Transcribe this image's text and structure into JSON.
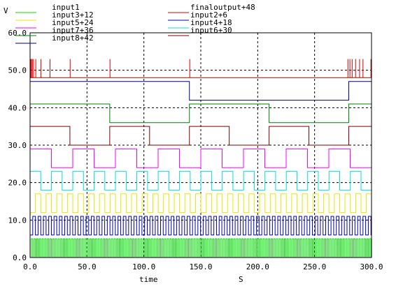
{
  "chart_data": {
    "type": "line",
    "xlabel": "time",
    "xunit": "S",
    "ylabel": "V",
    "xlim": [
      0,
      300
    ],
    "ylim": [
      0,
      60
    ],
    "grid": true,
    "xticks": [
      "0.0",
      "50.0",
      "100.0",
      "150.0",
      "200.0",
      "250.0",
      "300.0"
    ],
    "yticks": [
      "0.0",
      "10.0",
      "20.0",
      "30.0",
      "40.0",
      "50.0",
      "60.0"
    ],
    "legend": [
      {
        "name": "input1",
        "color": "#00e000"
      },
      {
        "name": "finaloutput+48",
        "color": "#e00000"
      },
      {
        "name": "input3+12",
        "color": "#e8e800"
      },
      {
        "name": "input2+6",
        "color": "#0000c0"
      },
      {
        "name": "input5+24",
        "color": "#ff00ff"
      },
      {
        "name": "input4+18",
        "color": "#00e0e0"
      },
      {
        "name": "input7+36",
        "color": "#008000"
      },
      {
        "name": "input6+30",
        "color": "#800000"
      },
      {
        "name": "input8+42",
        "color": "#000080"
      }
    ],
    "series": [
      {
        "name": "input1",
        "color": "#00e000",
        "base": 0,
        "amplitude": 5,
        "half_period": 1.17,
        "start": 0
      },
      {
        "name": "input2+6",
        "color": "#0000c0",
        "base": 6,
        "amplitude": 5,
        "half_period": 2.34,
        "start": 0
      },
      {
        "name": "input3+12",
        "color": "#e8e800",
        "base": 12,
        "amplitude": 5,
        "half_period": 4.69,
        "start": 0
      },
      {
        "name": "input4+18",
        "color": "#00e0e0",
        "base": 18,
        "amplitude": 5,
        "half_period": 9.38,
        "start": 1
      },
      {
        "name": "input5+24",
        "color": "#ff00ff",
        "base": 24,
        "amplitude": 5,
        "half_period": 18.75,
        "start": 1
      },
      {
        "name": "input6+30",
        "color": "#800000",
        "base": 30,
        "amplitude": 5,
        "half_period": 35.0,
        "start": 1
      },
      {
        "name": "input7+36",
        "color": "#008000",
        "base": 36,
        "amplitude": 5,
        "half_period": 70.0,
        "start": 1
      },
      {
        "name": "input8+42",
        "color": "#000080",
        "base": 42,
        "amplitude": 5,
        "half_period": 140.0,
        "start": 1
      },
      {
        "name": "finaloutput+48",
        "color": "#e00000",
        "base": 48,
        "amplitude": 5,
        "spikes": [
          0.5,
          1.2,
          2.0,
          3.0,
          5.0,
          9.5,
          17.5,
          35.2,
          70.2,
          140.3,
          279.3,
          281.0,
          283.0,
          286.0,
          289.5,
          292.5,
          299.5
        ]
      }
    ]
  }
}
